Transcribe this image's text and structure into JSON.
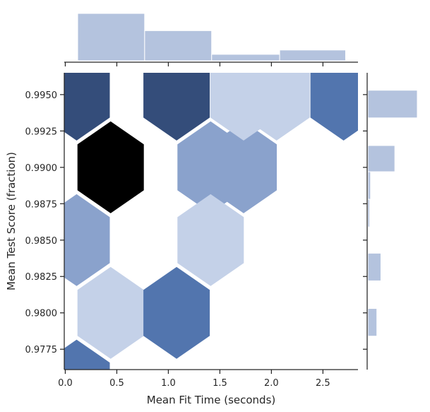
{
  "chart_data": {
    "type": "hexbin-jointplot",
    "xlabel": "Mean Fit Time (seconds)",
    "ylabel": "Mean Test Score (fraction)",
    "xlim": [
      -0.01,
      2.84
    ],
    "ylim": [
      0.9761,
      0.9965
    ],
    "x_ticks": [
      0.0,
      0.5,
      1.0,
      1.5,
      2.0,
      2.5
    ],
    "x_tick_labels": [
      "0.0",
      "0.5",
      "1.0",
      "1.5",
      "2.0",
      "2.5"
    ],
    "y_ticks": [
      0.9775,
      0.98,
      0.9825,
      0.985,
      0.9875,
      0.99,
      0.9925,
      0.995
    ],
    "y_tick_labels": [
      "0.9775",
      "0.9800",
      "0.9825",
      "0.9850",
      "0.9875",
      "0.9900",
      "0.9925",
      "0.9950"
    ],
    "colors": {
      "c1": "#c4d1e8",
      "c2": "#8aa2cc",
      "c3": "#5275ae",
      "c4": "#344d7a",
      "c5": "#000000",
      "marginal": "#b4c3de"
    },
    "hexbins": [
      {
        "x": 0.44,
        "y": 0.99,
        "count": 5
      },
      {
        "x": 0.11,
        "y": 0.995,
        "count": 4
      },
      {
        "x": 1.08,
        "y": 0.995,
        "count": 4
      },
      {
        "x": 1.41,
        "y": 0.99,
        "count": 2
      },
      {
        "x": 1.73,
        "y": 0.99,
        "count": 2
      },
      {
        "x": 0.11,
        "y": 0.985,
        "count": 2
      },
      {
        "x": 1.41,
        "y": 0.985,
        "count": 1
      },
      {
        "x": 1.73,
        "y": 0.995,
        "count": 1
      },
      {
        "x": 2.05,
        "y": 0.995,
        "count": 1
      },
      {
        "x": 2.7,
        "y": 0.995,
        "count": 3
      },
      {
        "x": 0.44,
        "y": 0.98,
        "count": 1
      },
      {
        "x": 1.08,
        "y": 0.98,
        "count": 3
      },
      {
        "x": 0.11,
        "y": 0.975,
        "count": 3
      }
    ],
    "x_marginal": {
      "bins": [
        [
          0.12,
          0.77
        ],
        [
          0.77,
          1.42
        ],
        [
          1.42,
          2.08
        ],
        [
          2.08,
          2.72
        ]
      ],
      "counts": [
        11,
        7,
        1.5,
        2.5
      ]
    },
    "y_marginal": {
      "bins": [
        [
          0.9934,
          0.9953
        ],
        [
          0.9915,
          0.9934
        ],
        [
          0.9897,
          0.9915
        ],
        [
          0.9878,
          0.9897
        ],
        [
          0.9859,
          0.9878
        ],
        [
          0.9841,
          0.9859
        ],
        [
          0.9822,
          0.9841
        ],
        [
          0.9803,
          0.9822
        ],
        [
          0.9784,
          0.9803
        ],
        [
          0.9765,
          0.9784
        ]
      ],
      "counts": [
        11,
        0,
        6,
        0.6,
        0.4,
        0,
        2.9,
        0,
        2,
        0
      ]
    }
  }
}
